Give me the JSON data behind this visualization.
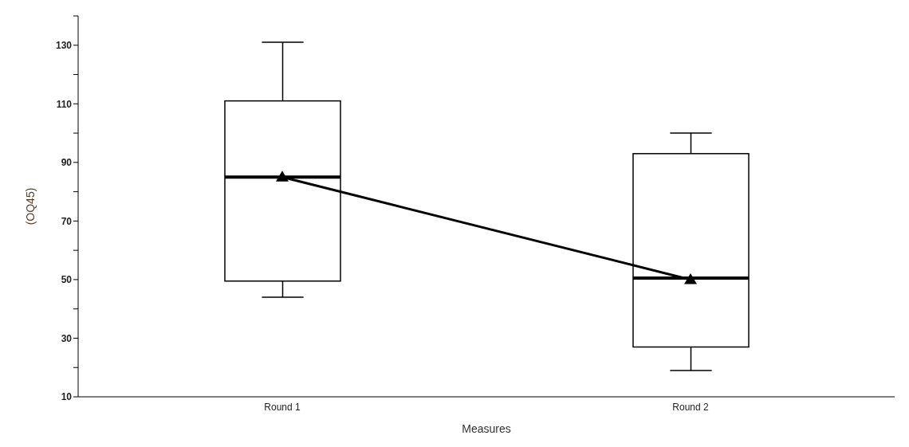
{
  "chart_data": {
    "type": "box",
    "xlabel": "Measures",
    "ylabel": "(OQ45)",
    "categories": [
      "Round 1",
      "Round 2"
    ],
    "boxes": [
      {
        "low": 44,
        "q1": 49.5,
        "median": 85,
        "q3": 111,
        "high": 131
      },
      {
        "low": 19,
        "q1": 27,
        "median": 50.5,
        "q3": 93,
        "high": 100
      }
    ],
    "series": [
      {
        "type": "line",
        "color": "#000000",
        "values": [
          85,
          50
        ]
      }
    ],
    "marker": "triangle",
    "line_style": "solid",
    "ylim": [
      10,
      140
    ],
    "yticks": [
      10,
      {
        "value": 20,
        "label": null
      },
      30,
      {
        "value": 40,
        "label": null
      },
      50,
      {
        "value": 60,
        "label": null
      },
      70,
      {
        "value": 80,
        "label": null
      },
      90,
      {
        "value": 100,
        "label": null
      },
      110,
      {
        "value": 120,
        "label": null
      },
      130,
      {
        "value": 140,
        "label": null
      }
    ]
  }
}
